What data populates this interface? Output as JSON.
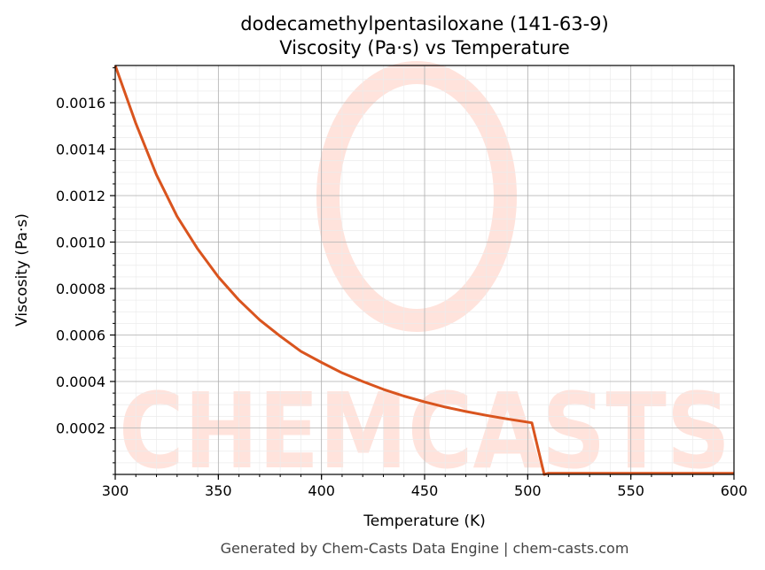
{
  "chart_data": {
    "type": "line",
    "title": "dodecamethylpentasiloxane (141-63-9)",
    "subtitle": "Viscosity (Pa·s) vs Temperature",
    "xlabel": "Temperature (K)",
    "ylabel": "Viscosity (Pa·s)",
    "xlim": [
      300,
      600
    ],
    "ylim": [
      0.0,
      0.00176
    ],
    "x_ticks": [
      "300",
      "350",
      "400",
      "450",
      "500",
      "550",
      "600"
    ],
    "y_ticks": [
      "0.0002",
      "0.0004",
      "0.0006",
      "0.0008",
      "0.0010",
      "0.0012",
      "0.0014",
      "0.0016"
    ],
    "grid": true,
    "line_color": "#d9541e",
    "series": [
      {
        "x": [
          300,
          310,
          320,
          330,
          340,
          350,
          360,
          370,
          380,
          390,
          400,
          410,
          420,
          430,
          440,
          450,
          460,
          470,
          480,
          490,
          502,
          508,
          510,
          550,
          600
        ],
        "y": [
          0.00176,
          0.00151,
          0.00129,
          0.00111,
          0.00097,
          0.00085,
          0.00075,
          0.000665,
          0.000595,
          0.00053,
          0.000482,
          0.000437,
          0.0004,
          0.000366,
          0.000337,
          0.000312,
          0.00029,
          0.000271,
          0.000254,
          0.000239,
          0.000222,
          0.0,
          5e-06,
          5e-06,
          5e-06
        ]
      }
    ]
  },
  "watermark": {
    "text": "CHEMCASTS",
    "color": "#ffe3dc"
  },
  "footer": "Generated by Chem-Casts Data Engine | chem-casts.com"
}
